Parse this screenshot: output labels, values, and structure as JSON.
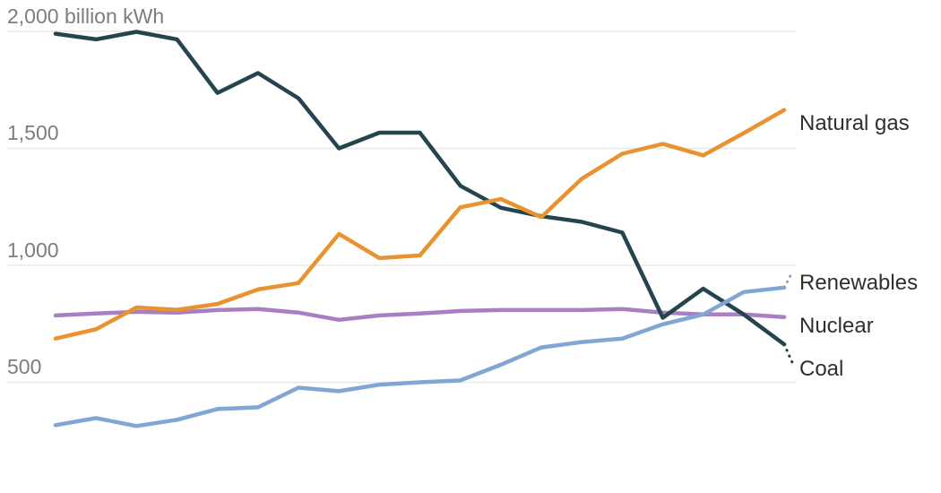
{
  "chart_data": {
    "type": "line",
    "title": "",
    "unit": "billion kWh",
    "y_axis": {
      "ticks": [
        {
          "value": 2000,
          "label": "2,000 billion kWh"
        },
        {
          "value": 1500,
          "label": "1,500"
        },
        {
          "value": 1000,
          "label": "1,000"
        },
        {
          "value": 500,
          "label": "500"
        }
      ],
      "range_shown": [
        2000,
        500
      ],
      "gridline_color": "#e8e8e8",
      "tick_text_color": "#7d7d7d"
    },
    "x_axis": {
      "labels_visible": false,
      "num_points": 19
    },
    "legend_position": "right-of-line-ends",
    "grid": true,
    "series": [
      {
        "name": "Nuclear",
        "label": "Nuclear",
        "color": "#a97fc4",
        "values": [
          786,
          794,
          801,
          798,
          809,
          813,
          798,
          767,
          786,
          794,
          805,
          809,
          809,
          809,
          813,
          798,
          790,
          790,
          779
        ]
      },
      {
        "name": "Coal",
        "label": "Coal",
        "color": "#24454e",
        "values": [
          1990,
          1966,
          1998,
          1966,
          1737,
          1822,
          1714,
          1500,
          1567,
          1567,
          1340,
          1246,
          1210,
          1186,
          1140,
          776,
          900,
          790,
          662
        ],
        "dashed_tail_value": 585
      },
      {
        "name": "Natural gas",
        "label": "Natural gas",
        "color": "#e8932f",
        "values": [
          687,
          727,
          820,
          810,
          835,
          897,
          924,
          1134,
          1031,
          1042,
          1248,
          1283,
          1206,
          1370,
          1477,
          1519,
          1470,
          1565,
          1664
        ]
      },
      {
        "name": "Renewables",
        "label": "Renewables",
        "color": "#80a6d3",
        "values": [
          317,
          347,
          313,
          340,
          386,
          393,
          477,
          462,
          490,
          500,
          508,
          575,
          649,
          672,
          687,
          748,
          790,
          886,
          905
        ],
        "dashed_tail_value": 970
      }
    ]
  }
}
